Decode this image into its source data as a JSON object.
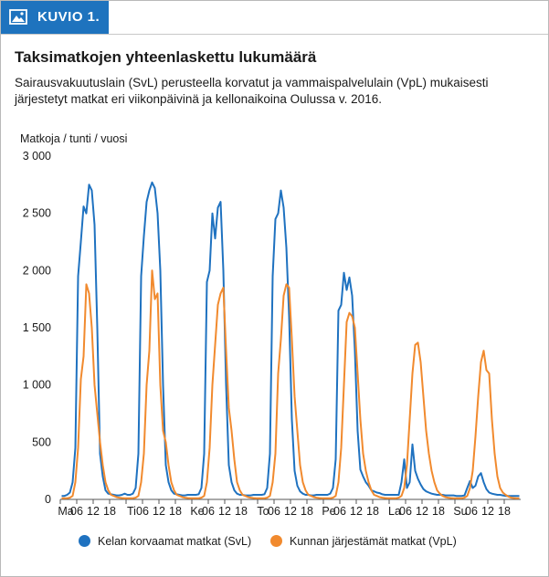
{
  "figure": {
    "label": "KUVIO 1.",
    "title": "Taksimatkojen yhteenlaskettu lukumäärä",
    "subtitle": "Sairausvakuutuslain (SvL) perusteella korvatut ja vammaispalvelulain (VpL) mukaisesti järjestetyt matkat eri viikonpäivinä ja kellonaikoina Oulussa v. 2016."
  },
  "colors": {
    "header_accent": "#1e73be",
    "series_svl": "#1f72c0",
    "series_vpl": "#f18a2e",
    "axis": "#555555"
  },
  "chart_data": {
    "type": "line",
    "title": "Taksimatkojen yhteenlaskettu lukumäärä",
    "ylabel": "Matkoja / tunti / vuosi",
    "xlabel": "",
    "ylim": [
      0,
      3000
    ],
    "yticks": [
      0,
      500,
      1000,
      1500,
      2000,
      2500,
      3000
    ],
    "ytick_labels": [
      "0",
      "500",
      "1 000",
      "1 500",
      "2 000",
      "2 500",
      "3 000"
    ],
    "x_unit": "hour of week (0 = Monday 00:00)",
    "xlim": [
      0,
      168
    ],
    "xtick_labels": [
      {
        "hour": 0,
        "label": "Ma"
      },
      {
        "hour": 6,
        "label": "06"
      },
      {
        "hour": 12,
        "label": "12"
      },
      {
        "hour": 18,
        "label": "18"
      },
      {
        "hour": 24,
        "label": "Ti"
      },
      {
        "hour": 30,
        "label": "06"
      },
      {
        "hour": 36,
        "label": "12"
      },
      {
        "hour": 42,
        "label": "18"
      },
      {
        "hour": 48,
        "label": "Ke"
      },
      {
        "hour": 54,
        "label": "06"
      },
      {
        "hour": 60,
        "label": "12"
      },
      {
        "hour": 66,
        "label": "18"
      },
      {
        "hour": 72,
        "label": "To"
      },
      {
        "hour": 78,
        "label": "06"
      },
      {
        "hour": 84,
        "label": "12"
      },
      {
        "hour": 90,
        "label": "18"
      },
      {
        "hour": 96,
        "label": "Pe"
      },
      {
        "hour": 102,
        "label": "06"
      },
      {
        "hour": 108,
        "label": "12"
      },
      {
        "hour": 114,
        "label": "18"
      },
      {
        "hour": 120,
        "label": "La"
      },
      {
        "hour": 126,
        "label": "06"
      },
      {
        "hour": 132,
        "label": "12"
      },
      {
        "hour": 138,
        "label": "18"
      },
      {
        "hour": 144,
        "label": "Su"
      },
      {
        "hour": 150,
        "label": "06"
      },
      {
        "hour": 156,
        "label": "12"
      },
      {
        "hour": 162,
        "label": "18"
      }
    ],
    "grid": false,
    "legend_position": "bottom",
    "series": [
      {
        "name": "Kelan korvaamat matkat (SvL)",
        "color": "#1f72c0",
        "values": [
          30,
          30,
          40,
          60,
          150,
          450,
          1950,
          2250,
          2560,
          2500,
          2750,
          2700,
          2400,
          1500,
          400,
          200,
          80,
          50,
          45,
          40,
          35,
          35,
          40,
          50,
          40,
          40,
          50,
          100,
          400,
          1950,
          2300,
          2600,
          2700,
          2770,
          2720,
          2500,
          2000,
          1000,
          300,
          150,
          80,
          50,
          45,
          40,
          35,
          35,
          40,
          40,
          40,
          40,
          45,
          100,
          400,
          1900,
          2000,
          2500,
          2280,
          2550,
          2600,
          2000,
          1000,
          300,
          150,
          80,
          50,
          40,
          40,
          35,
          35,
          35,
          40,
          40,
          40,
          40,
          45,
          100,
          400,
          1950,
          2450,
          2500,
          2700,
          2550,
          2200,
          1600,
          700,
          250,
          120,
          70,
          50,
          40,
          40,
          35,
          35,
          40,
          40,
          40,
          40,
          40,
          50,
          100,
          350,
          1650,
          1700,
          1980,
          1830,
          1940,
          1780,
          1300,
          600,
          260,
          200,
          150,
          120,
          80,
          70,
          60,
          55,
          45,
          40,
          40,
          40,
          40,
          40,
          40,
          150,
          350,
          100,
          150,
          480,
          250,
          180,
          130,
          90,
          70,
          60,
          50,
          45,
          40,
          40,
          40,
          35,
          35,
          35,
          35,
          30,
          30,
          30,
          35,
          100,
          160,
          100,
          120,
          200,
          230,
          150,
          90,
          60,
          50,
          45,
          40,
          40,
          35,
          30,
          30,
          30,
          30,
          30,
          30
        ]
      },
      {
        "name": "Kunnan järjestämät matkat (VpL)",
        "color": "#f18a2e",
        "values": [
          10,
          10,
          10,
          15,
          30,
          150,
          450,
          1050,
          1250,
          1880,
          1800,
          1500,
          1000,
          750,
          500,
          300,
          150,
          80,
          40,
          30,
          20,
          15,
          12,
          10,
          10,
          10,
          10,
          15,
          30,
          150,
          400,
          1000,
          1300,
          2000,
          1750,
          1800,
          1000,
          600,
          500,
          300,
          150,
          80,
          40,
          30,
          20,
          15,
          12,
          10,
          10,
          10,
          10,
          15,
          30,
          150,
          450,
          1000,
          1350,
          1700,
          1800,
          1850,
          1300,
          800,
          600,
          350,
          150,
          80,
          40,
          30,
          20,
          15,
          12,
          10,
          10,
          10,
          10,
          15,
          30,
          150,
          400,
          1100,
          1400,
          1780,
          1880,
          1850,
          1400,
          900,
          600,
          300,
          150,
          80,
          40,
          30,
          20,
          15,
          12,
          10,
          10,
          10,
          10,
          15,
          30,
          150,
          450,
          1000,
          1550,
          1630,
          1600,
          1500,
          1100,
          700,
          400,
          250,
          150,
          80,
          40,
          30,
          20,
          15,
          12,
          10,
          10,
          10,
          10,
          15,
          30,
          100,
          300,
          700,
          1100,
          1350,
          1370,
          1200,
          900,
          600,
          400,
          250,
          150,
          80,
          50,
          30,
          20,
          15,
          12,
          10,
          10,
          10,
          10,
          15,
          30,
          100,
          250,
          550,
          900,
          1200,
          1300,
          1130,
          1100,
          700,
          400,
          200,
          100,
          60,
          40,
          25,
          15,
          12,
          10,
          10
        ]
      }
    ]
  }
}
